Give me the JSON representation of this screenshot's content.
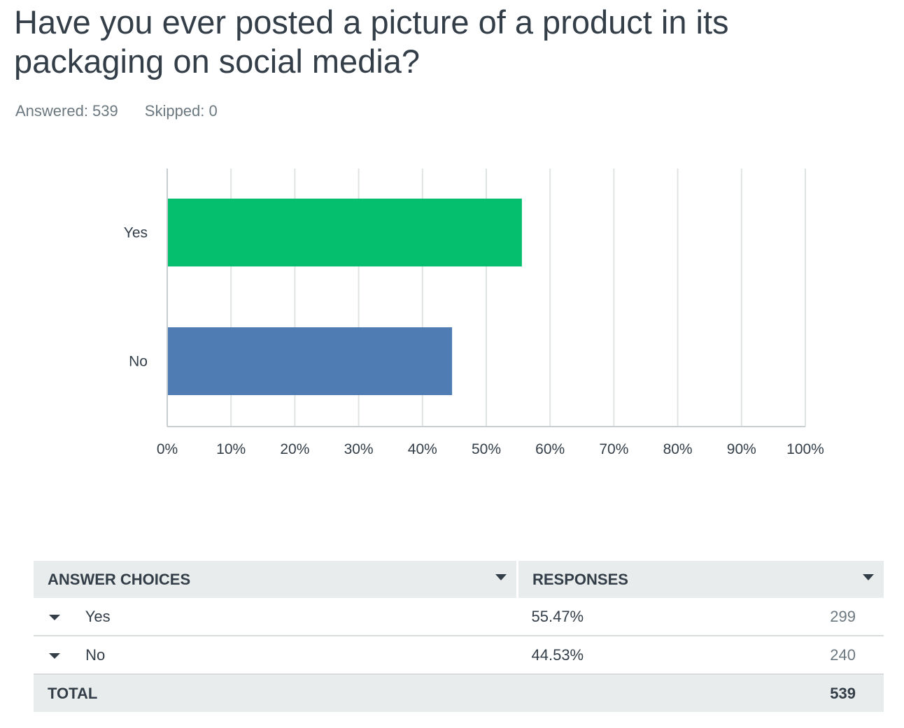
{
  "question": {
    "title": "Have you ever posted a picture of a product in its packaging on social media?"
  },
  "stats": {
    "answered": "Answered: 539",
    "skipped": "Skipped: 0"
  },
  "colors": {
    "yes": "#05bf6e",
    "no": "#4e7cb3",
    "grid": "#e0e3e4",
    "axis": "#c8cdd0"
  },
  "chart_data": {
    "type": "bar",
    "orientation": "horizontal",
    "categories": [
      "Yes",
      "No"
    ],
    "values": [
      55.47,
      44.53
    ],
    "xlim": [
      0,
      100
    ],
    "xticks": [
      "0%",
      "10%",
      "20%",
      "30%",
      "40%",
      "50%",
      "60%",
      "70%",
      "80%",
      "90%",
      "100%"
    ],
    "grid": true
  },
  "table": {
    "headers": {
      "choices": "ANSWER CHOICES",
      "responses": "RESPONSES"
    },
    "rows": [
      {
        "choice": "Yes",
        "percent": "55.47%",
        "count": "299"
      },
      {
        "choice": "No",
        "percent": "44.53%",
        "count": "240"
      }
    ],
    "total": {
      "label": "TOTAL",
      "count": "539"
    }
  }
}
